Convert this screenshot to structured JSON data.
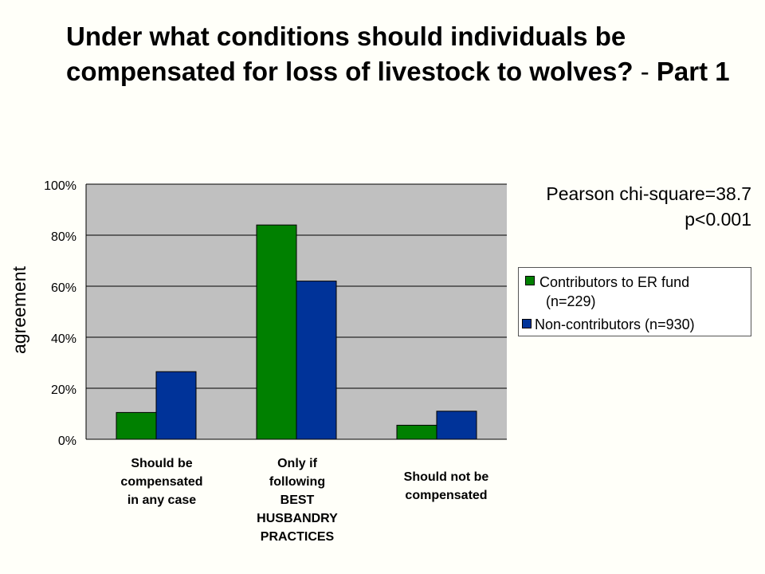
{
  "slide": {
    "title_main": "Under what conditions should individuals be compensated for loss of livestock to wolves?",
    "title_dash": "-",
    "title_part": "Part 1",
    "stat_line1": "Pearson chi-square=38.7",
    "stat_line2": "p<0.001"
  },
  "chart_data": {
    "type": "bar",
    "title": "",
    "xlabel": "",
    "ylabel": "agreement",
    "ylim": [
      0,
      100
    ],
    "yticks": [
      "0%",
      "20%",
      "40%",
      "60%",
      "80%",
      "100%"
    ],
    "grid": true,
    "legend_position": "right",
    "categories": [
      "Should be compensated in any case",
      "Only if following BEST HUSBANDRY PRACTICES",
      "Should not be compensated"
    ],
    "series": [
      {
        "name": "Contributors to ER fund (n=229)",
        "color": "#008000",
        "values": [
          10.5,
          84,
          5.5
        ]
      },
      {
        "name": "Non-contributors (n=930)",
        "color": "#003399",
        "values": [
          26.5,
          62,
          11
        ]
      }
    ],
    "plot_background": "#C0C0C0"
  },
  "legend": {
    "series0_line1": "Contributors to ER fund",
    "series0_line2": "(n=229)",
    "series1_line1": "Non-contributors (n=930)"
  },
  "category_labels": [
    [
      "Should be",
      "compensated",
      "in any case"
    ],
    [
      "Only if",
      "following",
      "BEST",
      "HUSBANDRY",
      "PRACTICES"
    ],
    [
      "Should not be",
      "compensated"
    ]
  ]
}
